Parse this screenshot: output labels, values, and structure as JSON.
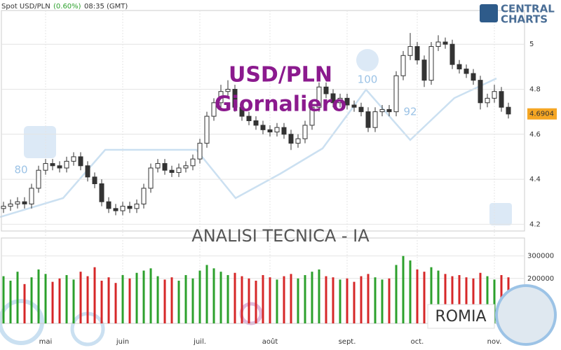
{
  "header": {
    "symbol": "Spot USD/PLN",
    "change": "(0.60%)",
    "time": "08:35 (GMT)"
  },
  "logo": {
    "line1": "CENTRAL",
    "line2": "CHARTS"
  },
  "chart_data": {
    "type": "candlestick",
    "title": "USD/PLN",
    "subtitle": "Giornaliero",
    "annotations": [
      "ANALISI TECNICA - IA",
      "ROMIA",
      "80",
      "100",
      "92"
    ],
    "last_price": 4.6904,
    "categories": [
      null,
      null,
      null,
      null,
      null,
      null,
      "mai",
      null,
      null,
      null,
      null,
      null,
      null,
      null,
      null,
      null,
      null,
      "juin",
      null,
      null,
      null,
      null,
      null,
      null,
      null,
      null,
      null,
      null,
      "juil.",
      null,
      null,
      null,
      null,
      null,
      null,
      null,
      null,
      null,
      "août",
      null,
      null,
      null,
      null,
      null,
      null,
      null,
      null,
      null,
      null,
      "sept.",
      null,
      null,
      null,
      null,
      null,
      null,
      null,
      null,
      null,
      "oct.",
      null,
      null,
      null,
      null,
      null,
      null,
      null,
      null,
      null,
      null,
      "nov.",
      null,
      null
    ],
    "open": [
      4.27,
      4.28,
      4.29,
      4.3,
      4.29,
      4.36,
      4.44,
      4.47,
      4.46,
      4.45,
      4.48,
      4.5,
      4.46,
      4.41,
      4.38,
      4.3,
      4.27,
      4.26,
      4.28,
      4.27,
      4.29,
      4.36,
      4.45,
      4.47,
      4.44,
      4.43,
      4.45,
      4.46,
      4.49,
      4.56,
      4.68,
      4.74,
      4.79,
      4.8,
      4.72,
      4.68,
      4.66,
      4.64,
      4.62,
      4.61,
      4.63,
      4.6,
      4.56,
      4.58,
      4.64,
      4.72,
      4.81,
      4.78,
      4.74,
      4.76,
      4.73,
      4.72,
      4.7,
      4.63,
      4.7,
      4.71,
      4.7,
      4.86,
      4.95,
      4.99,
      4.93,
      4.84,
      4.99,
      5.01,
      5.0,
      4.91,
      4.89,
      4.87,
      4.84,
      4.74,
      4.76,
      4.79,
      4.72
    ],
    "high": [
      4.3,
      4.31,
      4.32,
      4.32,
      4.38,
      4.46,
      4.49,
      4.49,
      4.48,
      4.5,
      4.52,
      4.52,
      4.48,
      4.43,
      4.4,
      4.32,
      4.29,
      4.3,
      4.3,
      4.31,
      4.38,
      4.47,
      4.49,
      4.49,
      4.46,
      4.47,
      4.48,
      4.51,
      4.58,
      4.7,
      4.76,
      4.82,
      4.84,
      4.82,
      4.74,
      4.7,
      4.68,
      4.66,
      4.64,
      4.65,
      4.65,
      4.62,
      4.6,
      4.66,
      4.74,
      4.83,
      4.83,
      4.8,
      4.78,
      4.78,
      4.75,
      4.74,
      4.72,
      4.72,
      4.73,
      4.73,
      4.88,
      4.97,
      5.05,
      5.01,
      4.95,
      5.01,
      5.04,
      5.03,
      5.02,
      4.93,
      4.91,
      4.89,
      4.86,
      4.78,
      4.82,
      4.81,
      4.74
    ],
    "low": [
      4.25,
      4.26,
      4.27,
      4.27,
      4.27,
      4.34,
      4.42,
      4.44,
      4.43,
      4.43,
      4.46,
      4.44,
      4.39,
      4.36,
      4.28,
      4.25,
      4.24,
      4.24,
      4.25,
      4.25,
      4.27,
      4.34,
      4.43,
      4.42,
      4.41,
      4.41,
      4.43,
      4.44,
      4.47,
      4.54,
      4.66,
      4.72,
      4.77,
      4.7,
      4.66,
      4.64,
      4.62,
      4.6,
      4.59,
      4.59,
      4.58,
      4.53,
      4.54,
      4.56,
      4.62,
      4.7,
      4.76,
      4.72,
      4.72,
      4.71,
      4.7,
      4.68,
      4.61,
      4.61,
      4.68,
      4.68,
      4.68,
      4.84,
      4.93,
      4.91,
      4.81,
      4.82,
      4.97,
      4.98,
      4.89,
      4.87,
      4.85,
      4.82,
      4.71,
      4.72,
      4.74,
      4.7,
      4.67
    ],
    "close": [
      4.28,
      4.29,
      4.3,
      4.29,
      4.36,
      4.44,
      4.47,
      4.46,
      4.45,
      4.48,
      4.5,
      4.46,
      4.41,
      4.38,
      4.3,
      4.27,
      4.26,
      4.28,
      4.27,
      4.29,
      4.36,
      4.45,
      4.47,
      4.44,
      4.43,
      4.45,
      4.46,
      4.49,
      4.56,
      4.68,
      4.74,
      4.79,
      4.8,
      4.72,
      4.68,
      4.66,
      4.64,
      4.62,
      4.61,
      4.63,
      4.6,
      4.56,
      4.58,
      4.64,
      4.72,
      4.81,
      4.78,
      4.74,
      4.76,
      4.73,
      4.72,
      4.7,
      4.63,
      4.7,
      4.71,
      4.7,
      4.86,
      4.95,
      4.99,
      4.93,
      4.84,
      4.99,
      5.01,
      5.0,
      4.91,
      4.89,
      4.87,
      4.84,
      4.74,
      4.76,
      4.79,
      4.72,
      4.69
    ],
    "ylim": [
      4.17,
      5.15
    ],
    "yticks": [
      4.2,
      4.4,
      4.6,
      4.8,
      5
    ],
    "up_color": "#2ca02c",
    "down_color": "#d62728",
    "volume": {
      "values": [
        210000,
        190000,
        230000,
        175000,
        205000,
        240000,
        220000,
        185000,
        200000,
        215000,
        195000,
        230000,
        210000,
        250000,
        190000,
        205000,
        180000,
        215000,
        200000,
        225000,
        235000,
        245000,
        210000,
        195000,
        205000,
        190000,
        215000,
        200000,
        235000,
        260000,
        245000,
        230000,
        215000,
        225000,
        210000,
        200000,
        190000,
        215000,
        205000,
        195000,
        210000,
        220000,
        200000,
        215000,
        230000,
        240000,
        210000,
        205000,
        195000,
        200000,
        185000,
        210000,
        220000,
        205000,
        195000,
        200000,
        260000,
        300000,
        280000,
        240000,
        230000,
        250000,
        235000,
        220000,
        210000,
        215000,
        205000,
        200000,
        225000,
        210000,
        195000,
        215000,
        205000
      ],
      "ylim": [
        0,
        380000
      ],
      "yticks": [
        200000,
        300000
      ]
    }
  }
}
